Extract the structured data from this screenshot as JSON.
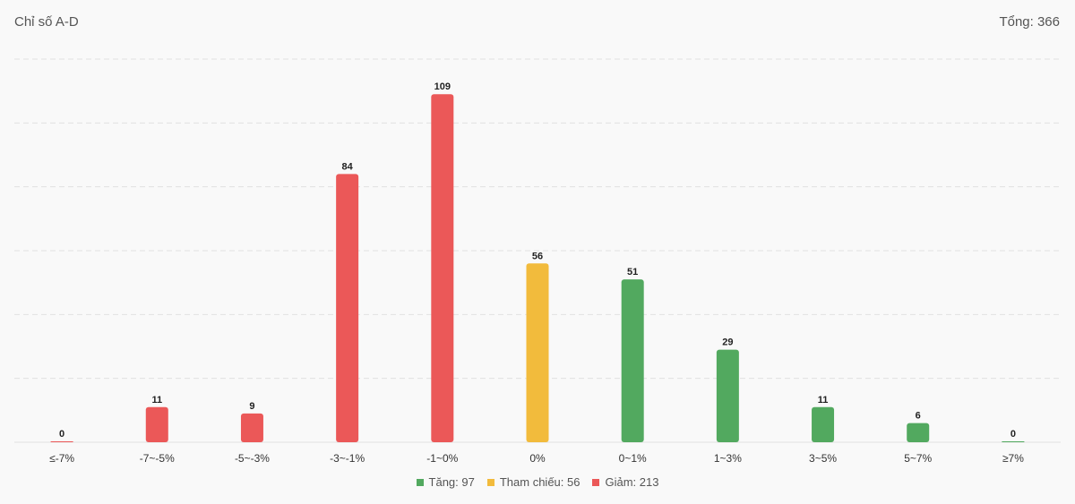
{
  "header": {
    "title": "Chỉ số A-D",
    "total_label": "Tổng: 366"
  },
  "colors": {
    "tang": "#52a95f",
    "tham_chieu": "#f2bb3c",
    "giam": "#eb5858",
    "grid": "#e1e1e1"
  },
  "legend": [
    {
      "label": "Tăng: 97",
      "color_key": "tang"
    },
    {
      "label": "Tham chiếu: 56",
      "color_key": "tham_chieu"
    },
    {
      "label": "Giảm: 213",
      "color_key": "giam"
    }
  ],
  "chart_data": {
    "type": "bar",
    "categories": [
      "≤-7%",
      "-7~-5%",
      "-5~-3%",
      "-3~-1%",
      "-1~0%",
      "0%",
      "0~1%",
      "1~3%",
      "3~5%",
      "5~7%",
      "≥7%"
    ],
    "values": [
      0,
      11,
      9,
      84,
      109,
      56,
      51,
      29,
      11,
      6,
      0
    ],
    "bar_colors": [
      "giam",
      "giam",
      "giam",
      "giam",
      "giam",
      "tham_chieu",
      "tang",
      "tang",
      "tang",
      "tang",
      "tang"
    ],
    "ylim": [
      0,
      120
    ],
    "grid": true
  }
}
